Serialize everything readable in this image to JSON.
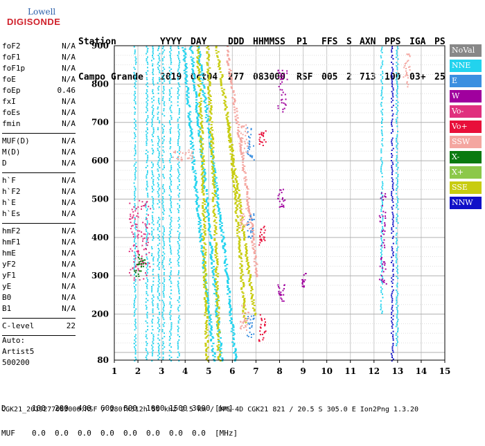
{
  "logo": {
    "top": "Lowell",
    "main": "DIGISONDE"
  },
  "header": {
    "labels": [
      "Station",
      "YYYY",
      "DAY",
      "DDD",
      "HHMMSS",
      "P1",
      "FFS",
      "S",
      "AXN",
      "PPS",
      "IGA",
      "PS"
    ],
    "values": [
      "Campo Grande",
      "2019",
      "Oct04",
      "277",
      "083000",
      "RSF",
      "005",
      "2",
      "713",
      "100",
      "03+",
      "25"
    ]
  },
  "params": {
    "group1": [
      {
        "k": "foF2",
        "v": "N/A"
      },
      {
        "k": "foF1",
        "v": "N/A"
      },
      {
        "k": "foF1p",
        "v": "N/A"
      },
      {
        "k": "foE",
        "v": "N/A"
      },
      {
        "k": "foEp",
        "v": "0.46"
      },
      {
        "k": "fxI",
        "v": "N/A"
      },
      {
        "k": "foEs",
        "v": "N/A"
      },
      {
        "k": "fmin",
        "v": "N/A"
      }
    ],
    "group2": [
      {
        "k": "MUF(D)",
        "v": "N/A"
      },
      {
        "k": "M(D)",
        "v": "N/A"
      },
      {
        "k": "D",
        "v": "N/A"
      }
    ],
    "group3": [
      {
        "k": "h`F",
        "v": "N/A"
      },
      {
        "k": "h`F2",
        "v": "N/A"
      },
      {
        "k": "h`E",
        "v": "N/A"
      },
      {
        "k": "h`Es",
        "v": "N/A"
      }
    ],
    "group4": [
      {
        "k": "hmF2",
        "v": "N/A"
      },
      {
        "k": "hmF1",
        "v": "N/A"
      },
      {
        "k": "hmE",
        "v": "N/A"
      },
      {
        "k": "yF2",
        "v": "N/A"
      },
      {
        "k": "yF1",
        "v": "N/A"
      },
      {
        "k": "yE",
        "v": "N/A"
      },
      {
        "k": "B0",
        "v": "N/A"
      },
      {
        "k": "B1",
        "v": "N/A"
      }
    ],
    "group5": [
      {
        "k": "C-level",
        "v": "22"
      }
    ]
  },
  "auto": {
    "line1": "Auto:",
    "line2": "Artist5",
    "line3": "500200"
  },
  "legend": [
    {
      "label": "NoVal",
      "color": "#888888"
    },
    {
      "label": "NNE",
      "color": "#22d3ee"
    },
    {
      "label": "E",
      "color": "#3b8fe0"
    },
    {
      "label": "W",
      "color": "#a0009e"
    },
    {
      "label": "Vo-",
      "color": "#e0307e"
    },
    {
      "label": "Vo+",
      "color": "#e8103a"
    },
    {
      "label": "SSW",
      "color": "#f4a6a0"
    },
    {
      "label": "X-",
      "color": "#0a7a10"
    },
    {
      "label": "X+",
      "color": "#8cc84a"
    },
    {
      "label": "SSE",
      "color": "#c8cc10"
    },
    {
      "label": "NNW",
      "color": "#1010c8"
    }
  ],
  "footer": {
    "d_label": "D",
    "d_values": [
      "100",
      "200",
      "400",
      "600",
      "800",
      "1000",
      "1500",
      "3000"
    ],
    "d_unit": "[km]",
    "muf_label": "MUF",
    "muf_values": [
      "0.0",
      "0.0",
      "0.0",
      "0.0",
      "0.0",
      "0.0",
      "0.0",
      "0.0"
    ],
    "muf_unit": "[MHz]",
    "file_line": "CGK21_2019277083000.RSF / 280fx512h 50 kHz 2.5 km / DPS-4D CGK21 821 / 20.5 S 305.0 E Ion2Png 1.3.20"
  },
  "chart_data": {
    "type": "scatter",
    "xlim": [
      1,
      15
    ],
    "ylim": [
      80,
      900
    ],
    "x_ticks": [
      1,
      2,
      3,
      4,
      5,
      6,
      7,
      8,
      9,
      10,
      11,
      12,
      13,
      14,
      15
    ],
    "y_ticks": [
      200,
      300,
      400,
      500,
      600,
      700,
      800,
      900
    ],
    "y_tick_labels": [
      "200",
      "300",
      "400",
      "500",
      "600",
      "700",
      "800",
      "900"
    ],
    "y_bottom_label": "80",
    "grid": true,
    "legend_position": "right",
    "vertical_traces": [
      {
        "x": 1.85,
        "color": "#22d3ee",
        "y": [
          80,
          900
        ]
      },
      {
        "x": 2.35,
        "color": "#22d3ee",
        "y": [
          80,
          900
        ]
      },
      {
        "x": 2.6,
        "color": "#22d3ee",
        "y": [
          80,
          900
        ]
      },
      {
        "x": 2.85,
        "color": "#22d3ee",
        "y": [
          80,
          900
        ]
      },
      {
        "x": 3.05,
        "color": "#22d3ee",
        "y": [
          80,
          900
        ]
      },
      {
        "x": 3.35,
        "color": "#22d3ee",
        "y": [
          80,
          900
        ]
      },
      {
        "x": 3.7,
        "color": "#22d3ee",
        "y": [
          80,
          900
        ]
      },
      {
        "x": 12.3,
        "color": "#22d3ee",
        "y": [
          200,
          900
        ]
      },
      {
        "x": 12.75,
        "color": "#1010c8",
        "y": [
          80,
          900
        ]
      },
      {
        "x": 12.95,
        "color": "#22d3ee",
        "y": [
          120,
          900
        ]
      }
    ],
    "sloped_traces": [
      {
        "color": "#22d3ee",
        "points": [
          [
            3.9,
            900
          ],
          [
            4.3,
            600
          ],
          [
            4.8,
            300
          ],
          [
            5.2,
            80
          ]
        ]
      },
      {
        "color": "#22d3ee",
        "points": [
          [
            4.2,
            900
          ],
          [
            4.7,
            600
          ],
          [
            5.1,
            350
          ],
          [
            5.5,
            80
          ]
        ]
      },
      {
        "color": "#22d3ee",
        "points": [
          [
            4.5,
            900
          ],
          [
            5.1,
            620
          ],
          [
            5.6,
            380
          ],
          [
            6.1,
            80
          ]
        ]
      },
      {
        "color": "#c8cc10",
        "points": [
          [
            4.5,
            900
          ],
          [
            4.7,
            600
          ],
          [
            4.8,
            300
          ],
          [
            4.9,
            80
          ]
        ]
      },
      {
        "color": "#c8cc10",
        "points": [
          [
            4.9,
            900
          ],
          [
            5.1,
            650
          ],
          [
            5.3,
            300
          ],
          [
            5.4,
            80
          ]
        ]
      },
      {
        "color": "#c8cc10",
        "points": [
          [
            5.3,
            900
          ],
          [
            5.9,
            650
          ],
          [
            6.4,
            430
          ],
          [
            6.9,
            200
          ]
        ]
      },
      {
        "color": "#f4a6a0",
        "points": [
          [
            5.7,
            900
          ],
          [
            6.3,
            650
          ],
          [
            6.8,
            420
          ],
          [
            7.0,
            300
          ]
        ]
      },
      {
        "color": "#c8cc10",
        "points": [
          [
            5.8,
            700
          ],
          [
            6.1,
            500
          ],
          [
            6.3,
            350
          ],
          [
            6.5,
            180
          ]
        ]
      }
    ],
    "clusters": [
      {
        "color": "#f4a6a0",
        "x": [
          6.3,
          6.7
        ],
        "y": [
          160,
          230
        ]
      },
      {
        "color": "#f4a6a0",
        "x": [
          6.3,
          6.7
        ],
        "y": [
          420,
          480
        ]
      },
      {
        "color": "#f4a6a0",
        "x": [
          6.3,
          6.7
        ],
        "y": [
          620,
          700
        ]
      },
      {
        "color": "#3b8fe0",
        "x": [
          6.6,
          6.9
        ],
        "y": [
          140,
          200
        ]
      },
      {
        "color": "#3b8fe0",
        "x": [
          6.6,
          6.9
        ],
        "y": [
          400,
          470
        ]
      },
      {
        "color": "#3b8fe0",
        "x": [
          6.6,
          6.9
        ],
        "y": [
          600,
          690
        ]
      },
      {
        "color": "#e8103a",
        "x": [
          7.1,
          7.4
        ],
        "y": [
          130,
          200
        ]
      },
      {
        "color": "#e8103a",
        "x": [
          7.1,
          7.4
        ],
        "y": [
          380,
          440
        ]
      },
      {
        "color": "#e8103a",
        "x": [
          7.1,
          7.4
        ],
        "y": [
          630,
          680
        ]
      },
      {
        "color": "#a0009e",
        "x": [
          7.9,
          8.2
        ],
        "y": [
          230,
          280
        ]
      },
      {
        "color": "#a0009e",
        "x": [
          7.9,
          8.2
        ],
        "y": [
          480,
          530
        ]
      },
      {
        "color": "#a0009e",
        "x": [
          7.9,
          8.3
        ],
        "y": [
          720,
          840
        ]
      },
      {
        "color": "#a0009e",
        "x": [
          8.9,
          9.1
        ],
        "y": [
          270,
          310
        ]
      },
      {
        "color": "#e0307e",
        "x": [
          1.6,
          2.5
        ],
        "y": [
          290,
          500
        ]
      },
      {
        "color": "#0a7a10",
        "x": [
          1.8,
          2.3
        ],
        "y": [
          300,
          360
        ]
      },
      {
        "color": "#f4a6a0",
        "x": [
          13.2,
          13.5
        ],
        "y": [
          790,
          880
        ]
      },
      {
        "color": "#a0009e",
        "x": [
          12.2,
          12.5
        ],
        "y": [
          280,
          520
        ]
      },
      {
        "color": "#f4a6a0",
        "x": [
          3.4,
          4.3
        ],
        "y": [
          600,
          630
        ]
      }
    ]
  }
}
